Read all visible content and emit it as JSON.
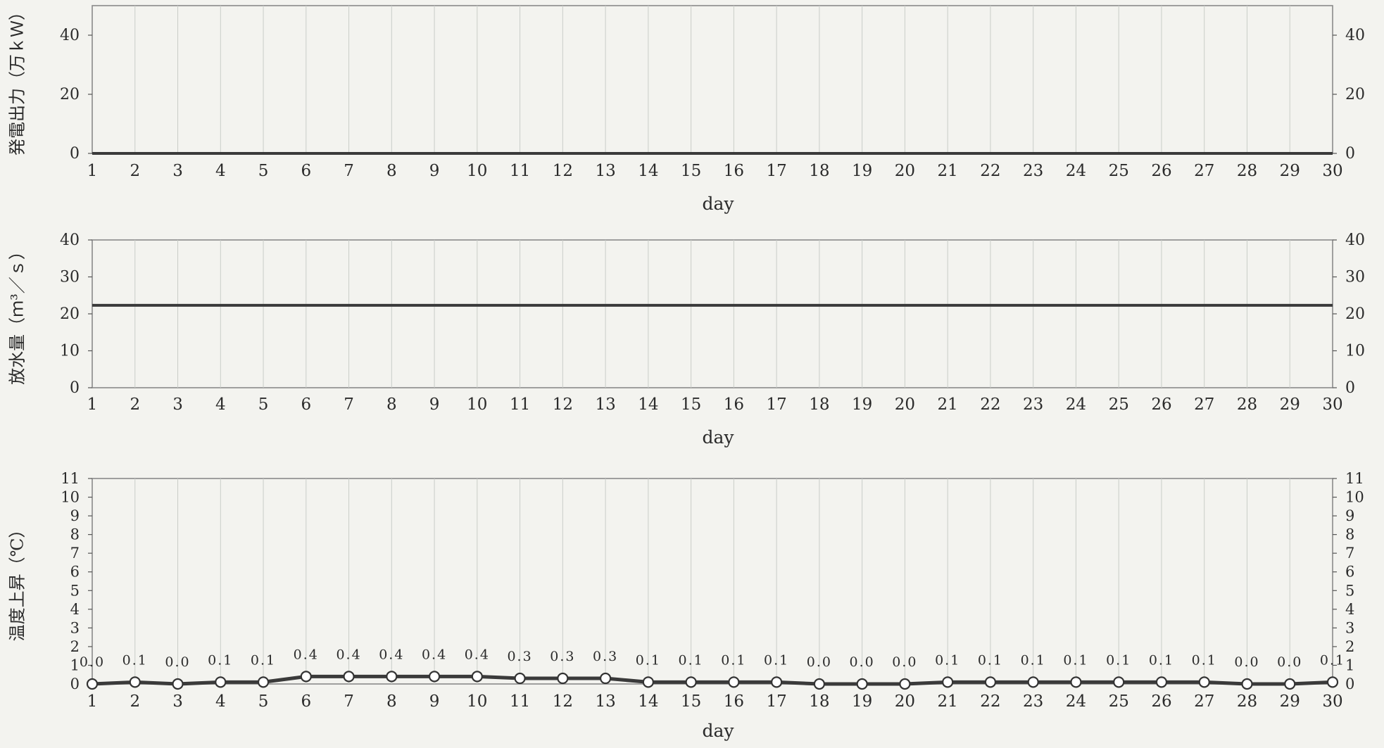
{
  "chart_data": [
    {
      "type": "line",
      "ylabel": "発電出力（万ｋＷ）",
      "xlabel": "day",
      "x": [
        1,
        2,
        3,
        4,
        5,
        6,
        7,
        8,
        9,
        10,
        11,
        12,
        13,
        14,
        15,
        16,
        17,
        18,
        19,
        20,
        21,
        22,
        23,
        24,
        25,
        26,
        27,
        28,
        29,
        30
      ],
      "ylim": [
        0,
        50
      ],
      "yticks": [
        0,
        20,
        40
      ],
      "grid": true,
      "series": [
        {
          "values": [
            0,
            0,
            0,
            0,
            0,
            0,
            0,
            0,
            0,
            0,
            0,
            0,
            0,
            0,
            0,
            0,
            0,
            0,
            0,
            0,
            0,
            0,
            0,
            0,
            0,
            0,
            0,
            0,
            0,
            0
          ]
        }
      ]
    },
    {
      "type": "line",
      "ylabel": "放水量（ｍ³／ｓ）",
      "xlabel": "day",
      "x": [
        1,
        2,
        3,
        4,
        5,
        6,
        7,
        8,
        9,
        10,
        11,
        12,
        13,
        14,
        15,
        16,
        17,
        18,
        19,
        20,
        21,
        22,
        23,
        24,
        25,
        26,
        27,
        28,
        29,
        30
      ],
      "ylim": [
        0,
        40
      ],
      "yticks": [
        0,
        10,
        20,
        30,
        40
      ],
      "grid": true,
      "series": [
        {
          "values": [
            22.3,
            22.3,
            22.3,
            22.3,
            22.3,
            22.3,
            22.3,
            22.3,
            22.3,
            22.3,
            22.3,
            22.3,
            22.3,
            22.3,
            22.3,
            22.3,
            22.3,
            22.3,
            22.3,
            22.3,
            22.3,
            22.3,
            22.3,
            22.3,
            22.3,
            22.3,
            22.3,
            22.3,
            22.3,
            22.3
          ]
        }
      ]
    },
    {
      "type": "line",
      "ylabel": "温度上昇（℃）",
      "xlabel": "day",
      "x": [
        1,
        2,
        3,
        4,
        5,
        6,
        7,
        8,
        9,
        10,
        11,
        12,
        13,
        14,
        15,
        16,
        17,
        18,
        19,
        20,
        21,
        22,
        23,
        24,
        25,
        26,
        27,
        28,
        29,
        30
      ],
      "ylim": [
        0,
        11
      ],
      "yticks": [
        0,
        1,
        2,
        3,
        4,
        5,
        6,
        7,
        8,
        9,
        10,
        11
      ],
      "grid": true,
      "series": [
        {
          "values": [
            0.0,
            0.1,
            0.0,
            0.1,
            0.1,
            0.4,
            0.4,
            0.4,
            0.4,
            0.4,
            0.3,
            0.3,
            0.3,
            0.1,
            0.1,
            0.1,
            0.1,
            0.0,
            0.0,
            0.0,
            0.1,
            0.1,
            0.1,
            0.1,
            0.1,
            0.1,
            0.1,
            0.0,
            0.0,
            0.1
          ],
          "labels": [
            "0.0",
            "0.1",
            "0.0",
            "0.1",
            "0.1",
            "0.4",
            "0.4",
            "0.4",
            "0.4",
            "0.4",
            "0.3",
            "0.3",
            "0.3",
            "0.1",
            "0.1",
            "0.1",
            "0.1",
            "0.0",
            "0.0",
            "0.0",
            "0.1",
            "0.1",
            "0.1",
            "0.1",
            "0.1",
            "0.1",
            "0.1",
            "0.0",
            "0.0",
            "0.1"
          ]
        }
      ]
    }
  ]
}
